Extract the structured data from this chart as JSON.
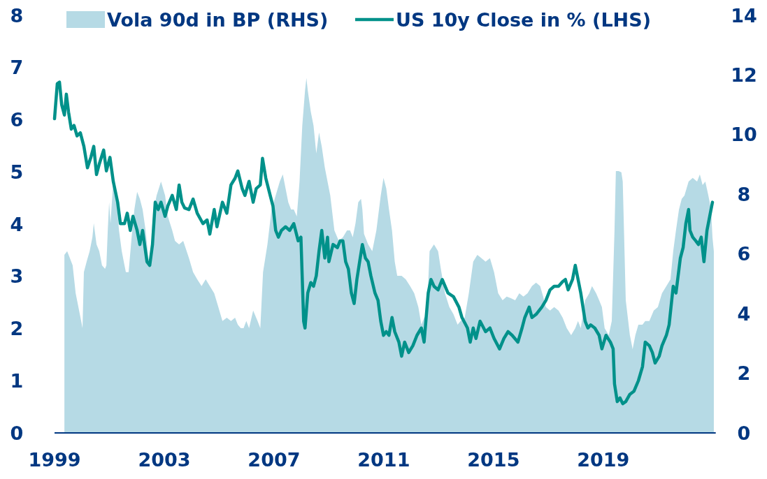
{
  "chart_data": {
    "type": "line",
    "legend": "top",
    "xlim": [
      1999,
      2023.1
    ],
    "xticks": [
      1999,
      2003,
      2007,
      2011,
      2015,
      2019
    ],
    "ylim": [
      0,
      8
    ],
    "yticks": [
      0,
      1,
      2,
      3,
      4,
      5,
      6,
      7,
      8
    ],
    "y2lim": [
      0,
      14
    ],
    "y2ticks": [
      0,
      2,
      4,
      6,
      8,
      10,
      12,
      14
    ],
    "series": [
      {
        "name": "Vola 90d in BP (RHS)",
        "type": "area",
        "axis": "y2",
        "color": "#b6dae5",
        "x": [
          1999.36,
          1999.46,
          1999.56,
          1999.66,
          1999.77,
          1999.87,
          1999.97,
          2000.02,
          2000.07,
          2000.17,
          2000.28,
          2000.38,
          2000.43,
          2000.53,
          2000.63,
          2000.73,
          2000.84,
          2000.89,
          2000.94,
          2000.99,
          2001.04,
          2001.14,
          2001.24,
          2001.35,
          2001.45,
          2001.55,
          2001.6,
          2001.7,
          2001.81,
          2001.91,
          2002.01,
          2002.11,
          2002.21,
          2002.32,
          2002.42,
          2002.52,
          2002.62,
          2002.72,
          2002.88,
          2003.03,
          2003.13,
          2003.29,
          2003.39,
          2003.54,
          2003.69,
          2003.9,
          2004.05,
          2004.2,
          2004.36,
          2004.51,
          2004.66,
          2004.82,
          2004.97,
          2005.12,
          2005.28,
          2005.43,
          2005.58,
          2005.68,
          2005.79,
          2005.89,
          2005.99,
          2006.09,
          2006.24,
          2006.4,
          2006.5,
          2006.6,
          2006.76,
          2006.91,
          2007.06,
          2007.21,
          2007.32,
          2007.42,
          2007.52,
          2007.62,
          2007.72,
          2007.83,
          2007.93,
          2008.03,
          2008.13,
          2008.18,
          2008.23,
          2008.34,
          2008.44,
          2008.54,
          2008.64,
          2008.74,
          2008.85,
          2008.95,
          2009.05,
          2009.2,
          2009.36,
          2009.51,
          2009.66,
          2009.77,
          2009.87,
          2009.97,
          2010.07,
          2010.17,
          2010.22,
          2010.28,
          2010.43,
          2010.58,
          2010.73,
          2010.89,
          2010.99,
          2011.09,
          2011.19,
          2011.3,
          2011.4,
          2011.49,
          2011.65,
          2011.8,
          2011.96,
          2012.11,
          2012.26,
          2012.37,
          2012.47,
          2012.57,
          2012.67,
          2012.83,
          2012.98,
          2013.08,
          2013.23,
          2013.39,
          2013.54,
          2013.69,
          2013.8,
          2013.95,
          2014.1,
          2014.26,
          2014.41,
          2014.56,
          2014.71,
          2014.87,
          2015.02,
          2015.17,
          2015.33,
          2015.48,
          2015.63,
          2015.79,
          2015.94,
          2016.09,
          2016.24,
          2016.4,
          2016.55,
          2016.7,
          2016.81,
          2016.91,
          2017.06,
          2017.21,
          2017.37,
          2017.52,
          2017.67,
          2017.83,
          2017.98,
          2018.08,
          2018.18,
          2018.34,
          2018.49,
          2018.59,
          2018.74,
          2018.85,
          2018.95,
          2019.05,
          2019.2,
          2019.31,
          2019.41,
          2019.46,
          2019.56,
          2019.66,
          2019.71,
          2019.82,
          2019.97,
          2020.07,
          2020.17,
          2020.28,
          2020.43,
          2020.53,
          2020.68,
          2020.84,
          2020.99,
          2021.14,
          2021.3,
          2021.45,
          2021.55,
          2021.65,
          2021.76,
          2021.86,
          2021.96,
          2022.11,
          2022.26,
          2022.42,
          2022.52,
          2022.62,
          2022.72,
          2022.83,
          2022.93,
          2022.98,
          2023.03
        ],
        "values": [
          5.97,
          6.09,
          5.86,
          5.62,
          4.68,
          4.22,
          3.75,
          3.51,
          5.39,
          5.74,
          6.09,
          6.56,
          7.03,
          6.32,
          6.09,
          5.62,
          5.5,
          5.62,
          6.79,
          7.73,
          7.03,
          8.43,
          7.96,
          6.79,
          6.09,
          5.62,
          5.39,
          5.39,
          6.56,
          7.49,
          8.08,
          7.85,
          7.49,
          6.79,
          5.86,
          5.62,
          7.49,
          7.96,
          8.43,
          7.96,
          7.26,
          6.79,
          6.44,
          6.32,
          6.44,
          5.86,
          5.39,
          5.15,
          4.92,
          5.15,
          4.92,
          4.68,
          4.22,
          3.75,
          3.86,
          3.75,
          3.86,
          3.63,
          3.51,
          3.51,
          3.75,
          3.51,
          4.1,
          3.75,
          3.51,
          5.39,
          6.32,
          7.49,
          7.96,
          8.43,
          8.67,
          8.2,
          7.73,
          7.49,
          7.49,
          7.26,
          8.43,
          10.3,
          11.48,
          11.9,
          11.48,
          10.77,
          10.3,
          9.37,
          10.07,
          9.6,
          8.9,
          8.43,
          7.96,
          6.79,
          6.44,
          6.56,
          6.79,
          6.79,
          6.56,
          7.03,
          7.73,
          7.85,
          7.49,
          6.67,
          6.32,
          6.09,
          6.79,
          7.96,
          8.55,
          8.2,
          7.49,
          6.79,
          5.74,
          5.27,
          5.27,
          5.15,
          4.92,
          4.68,
          4.22,
          3.63,
          3.86,
          3.98,
          6.09,
          6.32,
          6.09,
          5.5,
          4.68,
          4.22,
          3.98,
          3.63,
          3.75,
          3.86,
          4.68,
          5.74,
          5.97,
          5.86,
          5.74,
          5.86,
          5.39,
          4.68,
          4.45,
          4.57,
          4.52,
          4.45,
          4.68,
          4.57,
          4.68,
          4.92,
          5.04,
          4.92,
          4.57,
          4.22,
          4.1,
          4.22,
          4.1,
          3.86,
          3.51,
          3.28,
          3.51,
          3.75,
          3.51,
          4.45,
          4.68,
          4.92,
          4.68,
          4.45,
          4.22,
          3.51,
          3.28,
          3.75,
          6.79,
          8.78,
          8.78,
          8.74,
          8.43,
          4.45,
          3.28,
          2.81,
          3.28,
          3.63,
          3.63,
          3.75,
          3.75,
          4.1,
          4.22,
          4.68,
          4.92,
          5.15,
          6.09,
          6.79,
          7.49,
          7.85,
          7.96,
          8.43,
          8.55,
          8.43,
          8.67,
          8.31,
          8.43,
          7.96,
          7.49,
          6.56,
          6.09
        ]
      },
      {
        "name": "US 10y Close in % (LHS)",
        "color": "#00918a",
        "x": [
          1999.0,
          1999.1,
          1999.18,
          1999.26,
          1999.36,
          1999.43,
          1999.51,
          1999.61,
          1999.71,
          1999.82,
          1999.94,
          2000.07,
          2000.2,
          2000.33,
          2000.43,
          2000.53,
          2000.63,
          2000.79,
          2000.89,
          2001.02,
          2001.14,
          2001.3,
          2001.4,
          2001.55,
          2001.65,
          2001.76,
          2001.86,
          2002.01,
          2002.11,
          2002.21,
          2002.37,
          2002.47,
          2002.57,
          2002.67,
          2002.78,
          2002.88,
          2003.03,
          2003.13,
          2003.29,
          2003.44,
          2003.54,
          2003.64,
          2003.74,
          2003.9,
          2004.05,
          2004.2,
          2004.41,
          2004.56,
          2004.66,
          2004.82,
          2004.92,
          2005.12,
          2005.28,
          2005.43,
          2005.58,
          2005.68,
          2005.84,
          2005.94,
          2006.09,
          2006.24,
          2006.35,
          2006.5,
          2006.58,
          2006.7,
          2006.86,
          2006.96,
          2007.06,
          2007.16,
          2007.27,
          2007.42,
          2007.57,
          2007.72,
          2007.88,
          2007.98,
          2008.08,
          2008.13,
          2008.23,
          2008.34,
          2008.44,
          2008.54,
          2008.64,
          2008.74,
          2008.85,
          2008.95,
          2009.0,
          2009.15,
          2009.31,
          2009.41,
          2009.51,
          2009.61,
          2009.71,
          2009.82,
          2009.92,
          2010.02,
          2010.12,
          2010.22,
          2010.33,
          2010.43,
          2010.53,
          2010.68,
          2010.79,
          2010.89,
          2010.99,
          2011.09,
          2011.19,
          2011.3,
          2011.4,
          2011.55,
          2011.65,
          2011.76,
          2011.91,
          2012.06,
          2012.21,
          2012.37,
          2012.47,
          2012.62,
          2012.72,
          2012.83,
          2012.98,
          2013.13,
          2013.34,
          2013.54,
          2013.74,
          2013.85,
          2014.05,
          2014.15,
          2014.26,
          2014.36,
          2014.51,
          2014.71,
          2014.87,
          2015.02,
          2015.22,
          2015.38,
          2015.53,
          2015.68,
          2015.89,
          2016.04,
          2016.14,
          2016.3,
          2016.4,
          2016.55,
          2016.76,
          2016.91,
          2017.06,
          2017.21,
          2017.37,
          2017.52,
          2017.62,
          2017.72,
          2017.88,
          2017.98,
          2018.18,
          2018.34,
          2018.44,
          2018.54,
          2018.69,
          2018.85,
          2018.95,
          2019.1,
          2019.26,
          2019.36,
          2019.41,
          2019.51,
          2019.61,
          2019.71,
          2019.82,
          2019.97,
          2020.12,
          2020.28,
          2020.43,
          2020.53,
          2020.68,
          2020.79,
          2020.89,
          2021.04,
          2021.14,
          2021.3,
          2021.4,
          2021.55,
          2021.65,
          2021.81,
          2021.91,
          2022.01,
          2022.11,
          2022.16,
          2022.26,
          2022.37,
          2022.47,
          2022.57,
          2022.67,
          2022.78,
          2022.88,
          2022.98
        ],
        "values": [
          6.02,
          6.69,
          6.72,
          6.29,
          6.09,
          6.49,
          6.15,
          5.82,
          5.89,
          5.69,
          5.75,
          5.49,
          5.08,
          5.29,
          5.49,
          4.95,
          5.15,
          5.42,
          5.02,
          5.28,
          4.82,
          4.42,
          4.01,
          4.01,
          4.21,
          3.88,
          4.15,
          3.88,
          3.61,
          3.88,
          3.28,
          3.21,
          3.61,
          4.42,
          4.28,
          4.42,
          4.15,
          4.35,
          4.55,
          4.28,
          4.75,
          4.42,
          4.31,
          4.28,
          4.48,
          4.21,
          4.01,
          4.08,
          3.81,
          4.28,
          3.95,
          4.42,
          4.21,
          4.75,
          4.88,
          5.02,
          4.68,
          4.55,
          4.82,
          4.42,
          4.68,
          4.75,
          5.26,
          4.88,
          4.55,
          4.35,
          3.88,
          3.75,
          3.88,
          3.95,
          3.88,
          4.01,
          3.68,
          3.75,
          2.14,
          2.01,
          2.68,
          2.88,
          2.81,
          3.01,
          3.48,
          3.88,
          3.35,
          3.75,
          3.28,
          3.61,
          3.55,
          3.68,
          3.68,
          3.28,
          3.14,
          2.68,
          2.48,
          2.94,
          3.28,
          3.61,
          3.35,
          3.28,
          3.01,
          2.68,
          2.54,
          2.14,
          1.87,
          1.94,
          1.87,
          2.21,
          1.94,
          1.74,
          1.47,
          1.74,
          1.54,
          1.67,
          1.87,
          2.01,
          1.74,
          2.68,
          2.94,
          2.81,
          2.74,
          2.94,
          2.68,
          2.61,
          2.41,
          2.21,
          2.01,
          1.74,
          2.01,
          1.81,
          2.14,
          1.94,
          2.01,
          1.81,
          1.61,
          1.81,
          1.94,
          1.87,
          1.74,
          2.01,
          2.21,
          2.41,
          2.21,
          2.27,
          2.41,
          2.54,
          2.74,
          2.81,
          2.81,
          2.9,
          2.94,
          2.74,
          2.94,
          3.21,
          2.68,
          2.14,
          2.01,
          2.07,
          2.01,
          1.87,
          1.61,
          1.87,
          1.74,
          1.61,
          0.94,
          0.6,
          0.67,
          0.56,
          0.6,
          0.74,
          0.8,
          1.0,
          1.27,
          1.74,
          1.67,
          1.54,
          1.34,
          1.47,
          1.67,
          1.87,
          2.07,
          2.81,
          2.68,
          3.35,
          3.55,
          4.01,
          4.28,
          3.88,
          3.75,
          3.68,
          3.61,
          3.75,
          3.28,
          3.88,
          4.15,
          4.42
        ]
      }
    ]
  }
}
